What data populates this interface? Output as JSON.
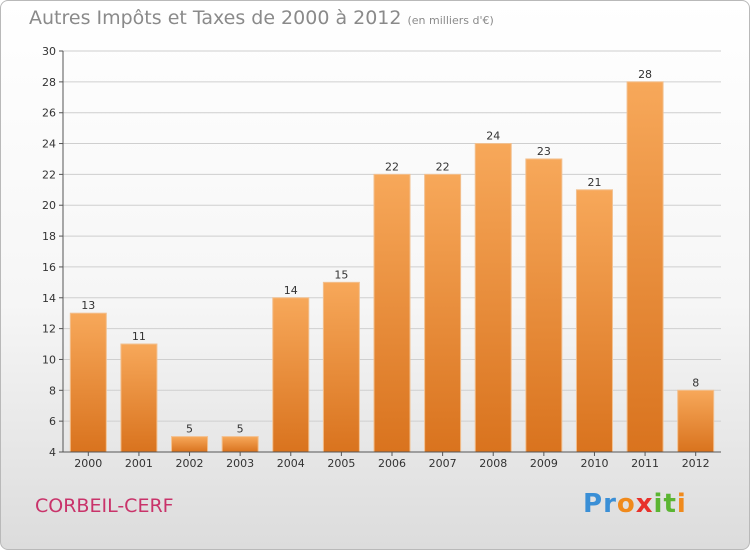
{
  "title": "Autres Impôts et Taxes de 2000 à 2012",
  "subtitle": "(en milliers d'€)",
  "place": "CORBEIL-CERF",
  "logo": {
    "text": "Proxiti",
    "letters": [
      "P",
      "r",
      "o",
      "x",
      "i",
      "t",
      "i"
    ],
    "colors": [
      "#3a8fd6",
      "#3a8fd6",
      "#f08a1c",
      "#e8312a",
      "#5bb532",
      "#5bb532",
      "#f08a1c"
    ]
  },
  "colors": {
    "bar_light": "#f7a85a",
    "bar_dark": "#d9731e",
    "title": "#8a8a8a",
    "place": "#c9336a"
  },
  "chart_data": {
    "type": "bar",
    "categories": [
      "2000",
      "2001",
      "2002",
      "2003",
      "2004",
      "2005",
      "2006",
      "2007",
      "2008",
      "2009",
      "2010",
      "2011",
      "2012"
    ],
    "values": [
      13,
      11,
      5,
      5,
      14,
      15,
      22,
      22,
      24,
      23,
      21,
      28,
      8
    ],
    "ylim": [
      4,
      30
    ],
    "yticks": [
      4,
      6,
      8,
      10,
      12,
      14,
      16,
      18,
      20,
      22,
      24,
      26,
      28,
      30
    ],
    "grid": true
  }
}
